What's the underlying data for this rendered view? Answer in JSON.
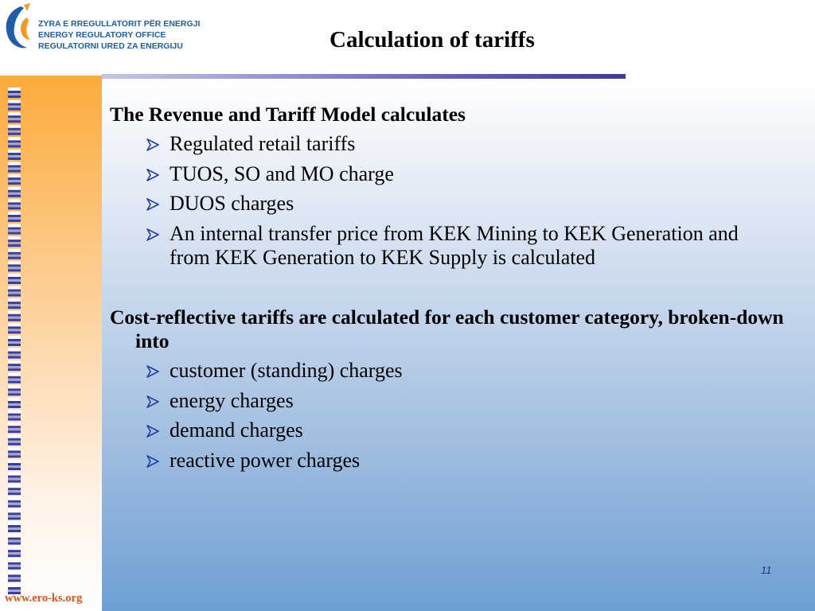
{
  "header": {
    "org_lines": [
      "ZYRA E RREGULLATORIT PËR ENERGJI",
      "ENERGY REGULATORY OFFICE",
      "REGULATORNI URED ZA ENERGIJU"
    ],
    "title": "Calculation of tariffs"
  },
  "sections": [
    {
      "heading": "The Revenue and Tariff Model calculates",
      "bullets": [
        "Regulated retail tariffs",
        "TUOS, SO and MO charge",
        "DUOS charges",
        "An internal transfer price from KEK Mining to KEK Generation and from KEK Generation to KEK Supply is calculated"
      ]
    },
    {
      "heading": "Cost-reflective tariffs are calculated for each customer category, broken-down into",
      "bullets": [
        "customer (standing) charges",
        "energy charges",
        "demand charges",
        "reactive power charges"
      ]
    }
  ],
  "page_number": "11",
  "footer": "www.ero-ks.org"
}
